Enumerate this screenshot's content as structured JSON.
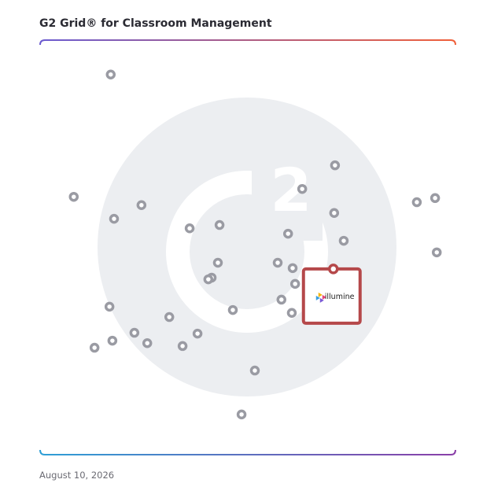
{
  "chart_data": {
    "type": "scatter",
    "title": "G2 Grid® for Classroom Management",
    "date": "August 10, 2026",
    "xlim": [
      0,
      100
    ],
    "ylim": [
      0,
      100
    ],
    "x": [
      17.0,
      8.1,
      17.8,
      24.4,
      36.0,
      43.2,
      71.0,
      63.1,
      70.8,
      59.7,
      73.1,
      90.7,
      95.1,
      95.5,
      42.8,
      41.3,
      40.5,
      57.2,
      60.8,
      61.4,
      58.1,
      60.6,
      46.4,
      16.7,
      31.1,
      22.7,
      25.8,
      17.4,
      13.1,
      37.9,
      34.3,
      51.7,
      48.5
    ],
    "y": [
      91.7,
      62.2,
      56.9,
      60.2,
      54.6,
      55.4,
      69.8,
      64.1,
      58.3,
      53.3,
      51.6,
      60.9,
      61.9,
      48.8,
      46.3,
      42.7,
      42.3,
      46.3,
      45.0,
      41.2,
      37.4,
      34.2,
      34.9,
      35.7,
      33.2,
      29.4,
      26.9,
      27.5,
      25.8,
      29.2,
      26.2,
      20.3,
      9.7
    ],
    "color": "#9a9ba3",
    "highlight": {
      "label": "illumine",
      "x": 70.6,
      "y": 44.8,
      "color": "#b5484a"
    }
  }
}
